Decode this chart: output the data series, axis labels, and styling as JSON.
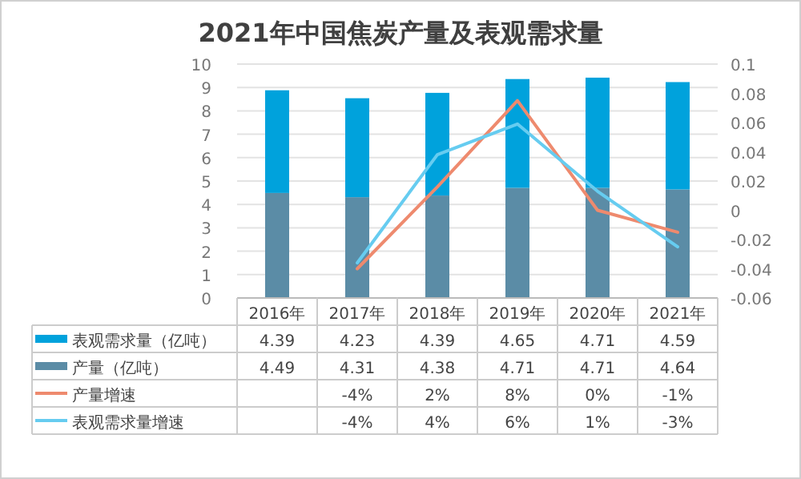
{
  "chart_data": {
    "type": "bar",
    "title": "2021年中国焦炭产量及表观需求量",
    "stacked": true,
    "grid": "y",
    "legend": "bottom",
    "categories": [
      "2016年",
      "2017年",
      "2018年",
      "2019年",
      "2020年",
      "2021年"
    ],
    "ylim": [
      0,
      10
    ],
    "yticks": [
      0,
      1,
      2,
      3,
      4,
      5,
      6,
      7,
      8,
      9,
      10
    ],
    "y2lim": [
      -0.06,
      0.1
    ],
    "y2ticks": [
      -0.06,
      -0.04,
      -0.02,
      0,
      0.02,
      0.04,
      0.06,
      0.08,
      0.1
    ],
    "series": [
      {
        "name": "产量（亿吨）",
        "color": "#5b8ca6",
        "values": [
          4.49,
          4.31,
          4.38,
          4.71,
          4.71,
          4.64
        ],
        "value_labels": [
          "4.49",
          "4.31",
          "4.38",
          "4.71",
          "4.71",
          "4.64"
        ]
      },
      {
        "name": "表观需求量（亿吨）",
        "color": "#00a2dc",
        "values": [
          4.39,
          4.23,
          4.39,
          4.65,
          4.71,
          4.59
        ],
        "value_labels": [
          "4.39",
          "4.23",
          "4.39",
          "4.65",
          "4.71",
          "4.59"
        ]
      },
      {
        "name": "产量增速",
        "type": "line",
        "axis": "y2",
        "color": "#ee8a6e",
        "values": [
          null,
          -0.04,
          0.016,
          0.075,
          0,
          -0.015
        ],
        "value_labels": [
          null,
          "-4%",
          "2%",
          "8%",
          "0%",
          "-1%"
        ]
      },
      {
        "name": "表观需求量增速",
        "type": "line",
        "axis": "y2",
        "color": "#66ccf0",
        "values": [
          null,
          -0.036,
          0.038,
          0.059,
          0.013,
          -0.025
        ],
        "value_labels": [
          null,
          "-4%",
          "4%",
          "6%",
          "1%",
          "-3%"
        ]
      }
    ]
  }
}
